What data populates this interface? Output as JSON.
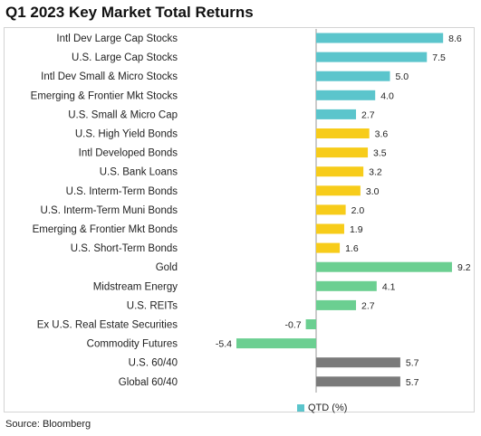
{
  "page_title": "Q1 2023 Key Market Total Returns",
  "source_note": "Source: Bloomberg",
  "colors": {
    "cyan": "#5bc5cc",
    "yellow": "#f7cc1a",
    "green": "#6bcf91",
    "gray": "#7a7a7a",
    "axis": "#9a9a9a"
  },
  "chart_data": {
    "type": "bar",
    "orientation": "horizontal",
    "title": "Q1 2023 Key Market Total Returns",
    "xlabel": "",
    "ylabel": "",
    "xlim": [
      -10,
      9.2
    ],
    "grid": false,
    "legend": {
      "position": "bottom-right",
      "entries": [
        "QTD (%)"
      ]
    },
    "categories": [
      "Intl Dev Large Cap Stocks",
      "U.S. Large Cap Stocks",
      "Intl Dev Small & Micro Stocks",
      "Emerging & Frontier Mkt Stocks",
      "U.S. Small & Micro Cap",
      "U.S. High Yield Bonds",
      "Intl Developed Bonds",
      "U.S. Bank Loans",
      "U.S. Interm-Term Bonds",
      "U.S. Interm-Term Muni Bonds",
      "Emerging & Frontier Mkt Bonds",
      "U.S. Short-Term Bonds",
      "Gold",
      "Midstream Energy",
      "U.S. REITs",
      "Ex U.S. Real Estate Securities",
      "Commodity Futures",
      "U.S. 60/40",
      "Global 60/40"
    ],
    "series": [
      {
        "name": "QTD (%)",
        "values": [
          8.6,
          7.5,
          5.0,
          4.0,
          2.7,
          3.6,
          3.5,
          3.2,
          3.0,
          2.0,
          1.9,
          1.6,
          9.2,
          4.1,
          2.7,
          -0.7,
          -5.4,
          5.7,
          5.7
        ],
        "labels": [
          "8.6",
          "7.5",
          "5.0",
          "4.0",
          "2.7",
          "3.6",
          "3.5",
          "3.2",
          "3.0",
          "2.0",
          "1.9",
          "1.6",
          "9.2",
          "4.1",
          "2.7",
          "-0.7",
          "-5.4",
          "5.7",
          "5.7"
        ],
        "colors": [
          "cyan",
          "cyan",
          "cyan",
          "cyan",
          "cyan",
          "yellow",
          "yellow",
          "yellow",
          "yellow",
          "yellow",
          "yellow",
          "yellow",
          "green",
          "green",
          "green",
          "green",
          "green",
          "gray",
          "gray"
        ]
      }
    ]
  }
}
